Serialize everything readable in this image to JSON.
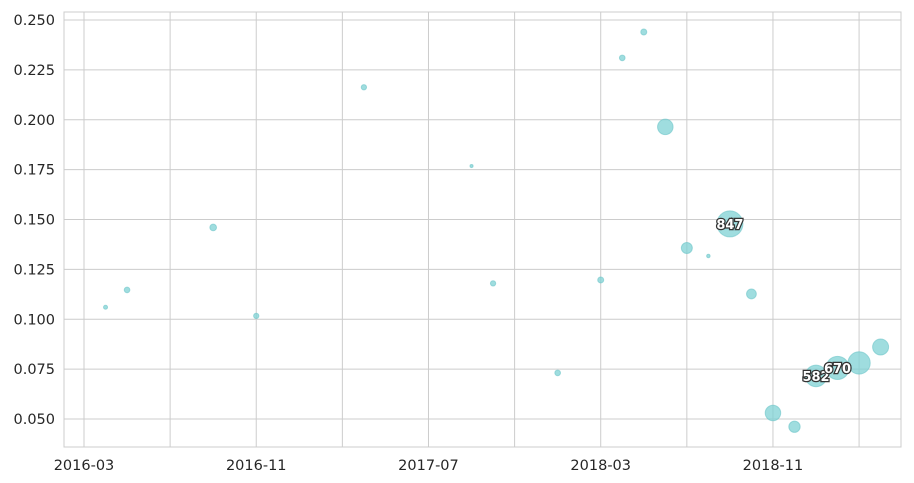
{
  "chart_data": {
    "type": "scatter",
    "title": "",
    "xlabel": "",
    "ylabel": "",
    "x_axis_type": "date",
    "xlim": [
      "2016-02",
      "2019-05"
    ],
    "ylim": [
      0.036,
      0.2535
    ],
    "x_ticks": [
      "2016-03",
      "2016-07",
      "2016-11",
      "2017-03",
      "2017-07",
      "2017-11",
      "2018-03",
      "2018-07",
      "2018-11",
      "2019-03"
    ],
    "x_tick_labels": [
      "2016-03",
      "",
      "2016-11",
      "",
      "2017-07",
      "",
      "2018-03",
      "",
      "2018-11",
      ""
    ],
    "y_ticks": [
      0.05,
      0.075,
      0.1,
      0.125,
      0.15,
      0.175,
      0.2,
      0.225,
      0.25
    ],
    "y_tick_labels": [
      "0.050",
      "0.075",
      "0.100",
      "0.125",
      "0.150",
      "0.175",
      "0.200",
      "0.225",
      "0.250"
    ],
    "grid": true,
    "marker_color": "#7fd1d4",
    "points": [
      {
        "x": "2016-04",
        "y": 0.106,
        "size": 20
      },
      {
        "x": "2016-05",
        "y": 0.1147,
        "size": 40
      },
      {
        "x": "2016-09",
        "y": 0.146,
        "size": 55
      },
      {
        "x": "2016-11",
        "y": 0.1017,
        "size": 35
      },
      {
        "x": "2017-04",
        "y": 0.2163,
        "size": 35
      },
      {
        "x": "2017-09",
        "y": 0.1768,
        "size": 12
      },
      {
        "x": "2017-10",
        "y": 0.118,
        "size": 35
      },
      {
        "x": "2018-01",
        "y": 0.0731,
        "size": 40
      },
      {
        "x": "2018-03",
        "y": 0.1197,
        "size": 45
      },
      {
        "x": "2018-04",
        "y": 0.231,
        "size": 40
      },
      {
        "x": "2018-05",
        "y": 0.244,
        "size": 45
      },
      {
        "x": "2018-06",
        "y": 0.1964,
        "size": 300
      },
      {
        "x": "2018-07",
        "y": 0.1357,
        "size": 150
      },
      {
        "x": "2018-08",
        "y": 0.1317,
        "size": 15
      },
      {
        "x": "2018-09",
        "y": 0.1478,
        "size": 847,
        "label": "847"
      },
      {
        "x": "2018-10",
        "y": 0.1127,
        "size": 120
      },
      {
        "x": "2018-11",
        "y": 0.053,
        "size": 300
      },
      {
        "x": "2018-12",
        "y": 0.0461,
        "size": 160
      },
      {
        "x": "2019-01",
        "y": 0.0716,
        "size": 582,
        "label": "582"
      },
      {
        "x": "2019-02",
        "y": 0.0756,
        "size": 670,
        "label": "670"
      },
      {
        "x": "2019-03",
        "y": 0.0781,
        "size": 620
      },
      {
        "x": "2019-04",
        "y": 0.0861,
        "size": 320
      }
    ]
  }
}
